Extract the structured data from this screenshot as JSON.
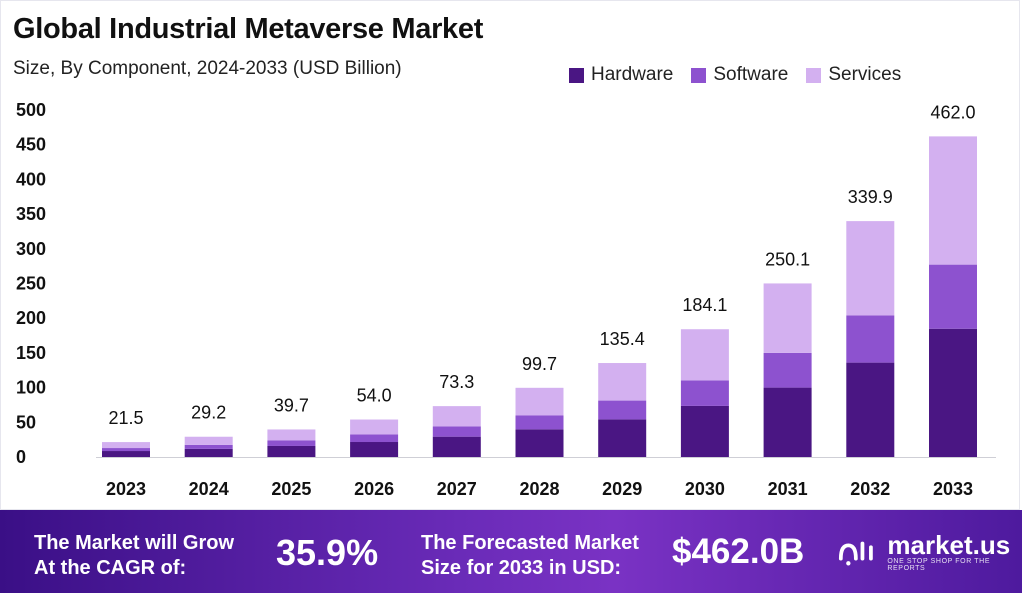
{
  "header": {
    "title": "Global Industrial Metaverse Market",
    "subtitle": "Size, By Component, 2024-2033 (USD Billion)"
  },
  "colors": {
    "hardware": "#4a1683",
    "software": "#8d52cf",
    "services": "#d3b0f0",
    "footer_start": "#3a0f86",
    "footer_end": "#7a32c4"
  },
  "chart_data": {
    "type": "bar",
    "stacked": true,
    "categories": [
      "2023",
      "2024",
      "2025",
      "2026",
      "2027",
      "2028",
      "2029",
      "2030",
      "2031",
      "2032",
      "2033"
    ],
    "series": [
      {
        "name": "Hardware",
        "values": [
          8.6,
          11.7,
          15.9,
          21.6,
          29.3,
          39.9,
          54.2,
          73.6,
          100.0,
          136.0,
          184.8
        ]
      },
      {
        "name": "Software",
        "values": [
          4.3,
          5.8,
          7.9,
          10.8,
          14.7,
          19.9,
          27.1,
          36.8,
          50.0,
          68.0,
          92.4
        ]
      },
      {
        "name": "Services",
        "values": [
          8.6,
          11.7,
          15.9,
          21.6,
          29.3,
          39.9,
          54.1,
          73.7,
          100.1,
          135.9,
          184.8
        ]
      }
    ],
    "totals": [
      "21.5",
      "29.2",
      "39.7",
      "54.0",
      "73.3",
      "99.7",
      "135.4",
      "184.1",
      "250.1",
      "339.9",
      "462.0"
    ],
    "yticks": [
      "500",
      "450",
      "400",
      "350",
      "300",
      "250",
      "200",
      "150",
      "100",
      "50",
      "0"
    ],
    "ylim": [
      0,
      500
    ],
    "legend_position": "top-right",
    "grid": false
  },
  "footer": {
    "cagr_label_line1": "The Market will Grow",
    "cagr_label_line2": "At the CAGR of:",
    "cagr_value": "35.9%",
    "forecast_label_line1": "The Forecasted Market",
    "forecast_label_line2": "Size for 2033 in USD:",
    "forecast_value": "$462.0B",
    "logo_name": "market.us",
    "logo_tagline": "ONE STOP SHOP FOR THE REPORTS"
  }
}
